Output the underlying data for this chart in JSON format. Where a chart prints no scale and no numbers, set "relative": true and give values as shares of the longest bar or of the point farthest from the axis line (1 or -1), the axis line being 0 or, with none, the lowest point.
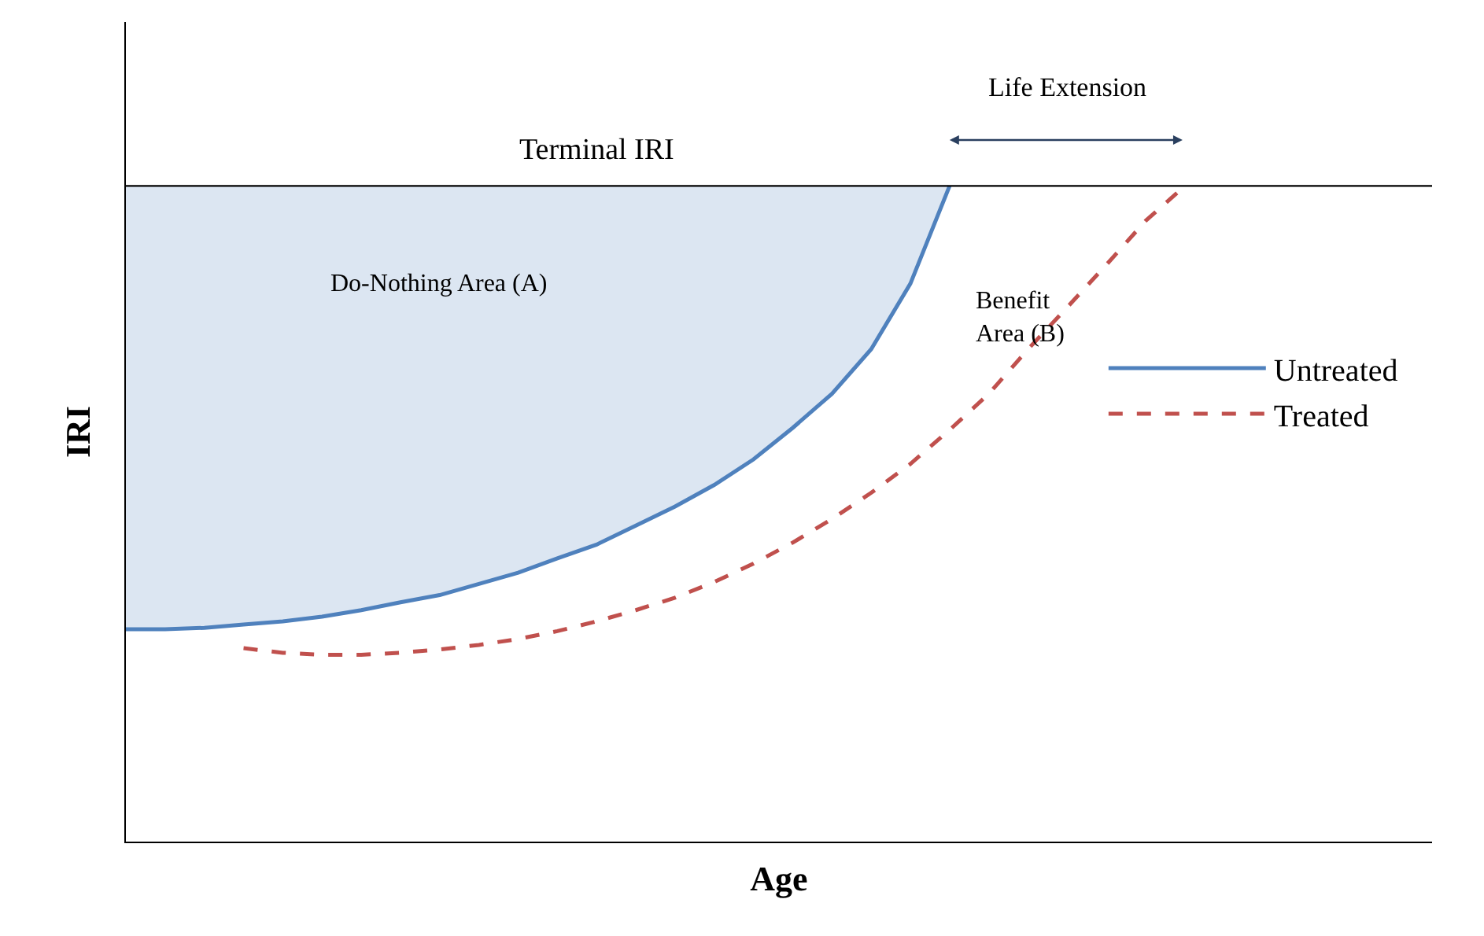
{
  "chart_data": {
    "type": "line",
    "relative": true,
    "xlabel": "Age",
    "ylabel": "IRI",
    "categories": [
      null,
      null,
      null,
      null,
      null,
      null,
      null,
      null,
      null,
      null,
      null,
      null,
      null,
      null,
      null,
      null,
      null,
      null,
      null,
      null,
      null,
      null,
      null,
      null,
      null,
      null,
      null,
      null,
      null,
      null,
      null,
      null,
      null,
      null
    ],
    "series": [
      {
        "name": "Untreated",
        "color": "#4f81bd",
        "line_style": "solid",
        "values": [
          0.324,
          0.324,
          0.326,
          0.331,
          0.336,
          0.343,
          0.353,
          0.365,
          0.376,
          0.393,
          0.41,
          0.432,
          0.453,
          0.482,
          0.511,
          0.544,
          0.583,
          0.631,
          0.683,
          0.751,
          0.851,
          1,
          null,
          null,
          null,
          null,
          null,
          null,
          null,
          null,
          null,
          null,
          null,
          null
        ]
      },
      {
        "name": "Treated",
        "color": "#c0504d",
        "line_style": "dashed",
        "values": [
          null,
          null,
          null,
          0.295,
          0.288,
          0.285,
          0.285,
          0.288,
          0.293,
          0.3,
          0.309,
          0.321,
          0.336,
          0.353,
          0.372,
          0.396,
          0.424,
          0.456,
          0.492,
          0.532,
          0.576,
          0.628,
          0.683,
          0.751,
          0.815,
          0.88,
          0.947,
          1,
          null,
          null,
          null,
          null,
          null,
          null
        ]
      }
    ],
    "ref_lines": [
      {
        "axis": "y",
        "value": 1,
        "label": "Terminal IRI",
        "color": "#000000"
      }
    ],
    "annotations": [
      "Life Extension",
      "Do-Nothing Area (A)",
      "Benefit Area (B)"
    ],
    "legend": "right",
    "tick_labels": false,
    "marker": "none"
  }
}
